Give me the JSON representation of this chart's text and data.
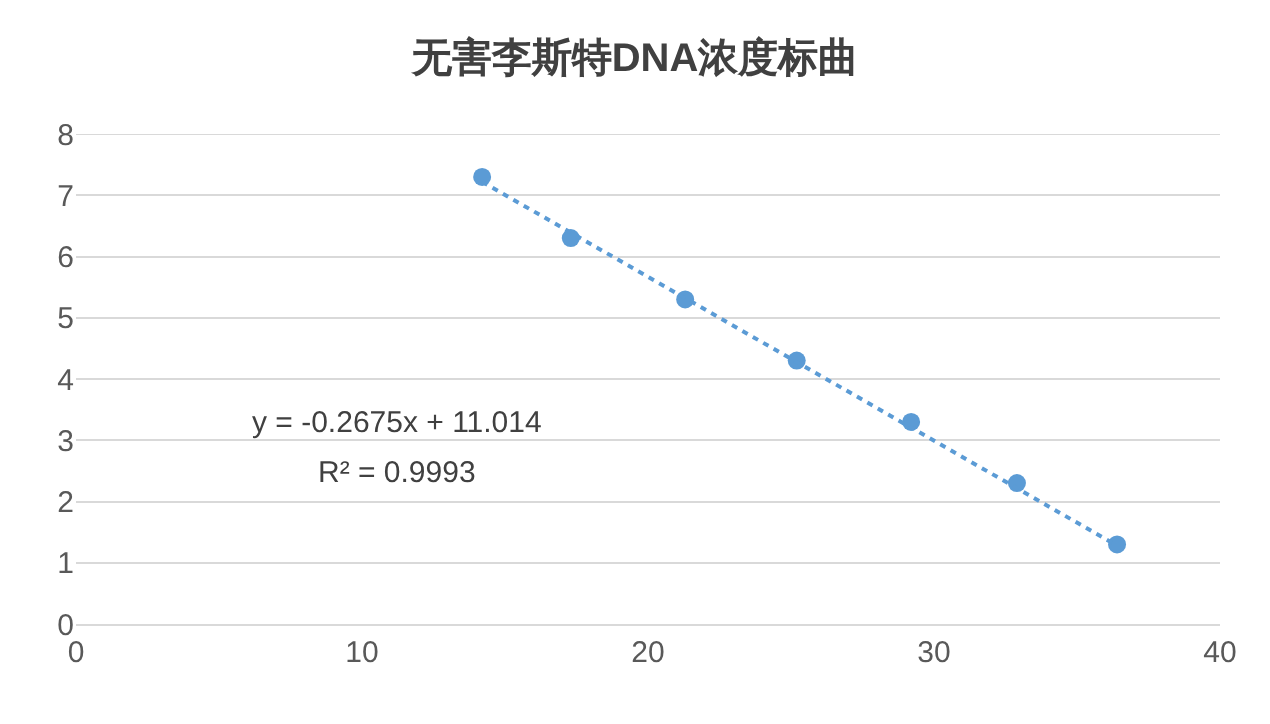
{
  "chart_data": {
    "type": "scatter",
    "title": "无害李斯特DNA浓度标曲",
    "series": [
      {
        "color": "#5b9bd5",
        "marker": "circle",
        "x": [
          14.2,
          17.3,
          21.3,
          25.2,
          29.2,
          32.9,
          36.4
        ],
        "values": [
          7.3,
          6.3,
          5.3,
          4.3,
          3.3,
          2.3,
          1.3
        ]
      },
      {
        "type": "line",
        "color": "#5b9bd5",
        "line_style": "dotted",
        "marker": "none",
        "x": [
          14.2,
          36.4
        ],
        "values": [
          7.22,
          1.28
        ]
      }
    ],
    "annotations": [
      "y = -0.2675x + 11.014",
      "R² = 0.9993"
    ],
    "xlim": [
      0,
      40
    ],
    "xticks": [
      0,
      10,
      20,
      30,
      40
    ],
    "ylim": [
      0,
      8
    ],
    "yticks": [
      0,
      1,
      2,
      3,
      4,
      5,
      6,
      7,
      8
    ],
    "grid": "y"
  }
}
